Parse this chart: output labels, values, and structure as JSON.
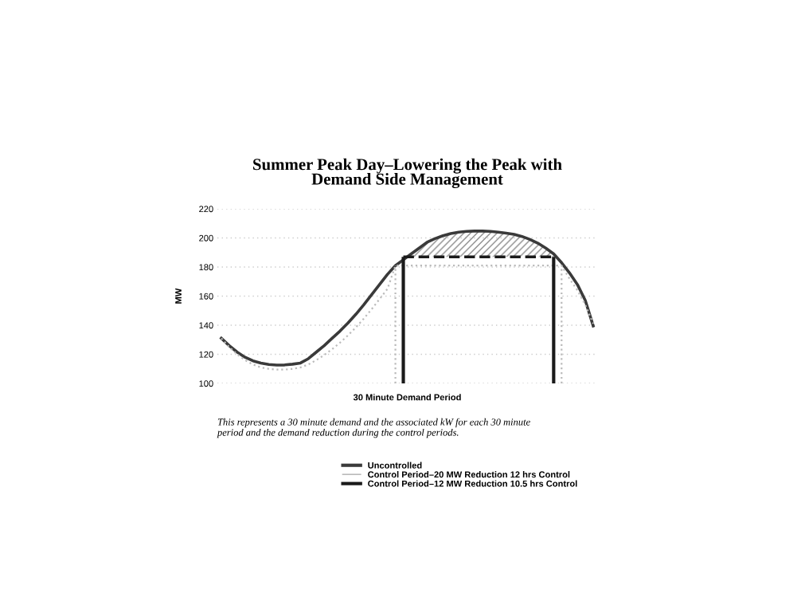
{
  "chart_data": {
    "type": "line",
    "title": "Summer Peak Day–Lowering the Peak with\nDemand Side Management",
    "xlabel": "30 Minute Demand Period",
    "ylabel": "MW",
    "annotations": [
      "This represents a 30 minute demand and the associated kW for each 30 minute\nperiod and the demand reduction during the control periods."
    ],
    "categories": [
      null,
      null,
      null,
      null,
      null,
      null,
      null,
      null,
      null,
      null,
      null,
      null,
      null,
      null,
      null,
      null,
      null,
      null,
      null,
      null,
      null,
      null,
      null,
      null,
      null,
      null,
      null,
      null,
      null,
      null,
      null,
      null,
      null,
      null,
      null,
      null,
      null,
      null,
      null,
      null,
      null,
      null,
      null,
      null,
      null,
      null,
      null,
      null
    ],
    "ylim": [
      100,
      220
    ],
    "yticks": [
      100,
      120,
      140,
      160,
      180,
      200,
      220
    ],
    "grid": "y",
    "legend": "bottom",
    "marker": "none",
    "series": [
      {
        "name": "Uncontrolled",
        "color": "#3a3a3a",
        "line_style": "solid",
        "values": [
          131,
          126,
          121.5,
          118,
          115.5,
          114,
          113,
          112.6,
          112.7,
          113.2,
          114,
          117,
          121.5,
          126,
          131,
          136,
          141.5,
          147.5,
          154,
          161,
          168,
          175,
          181,
          185,
          189,
          193,
          197,
          199.5,
          201.5,
          203,
          204,
          204.5,
          204.7,
          204.7,
          204.5,
          204,
          203.3,
          202.5,
          201,
          199,
          196.4,
          193,
          189,
          183,
          176,
          168,
          157,
          139.5
        ]
      },
      {
        "name": "Control Period–20 MW Reduction 12 hrs Control",
        "color": "#bbbbbb",
        "line_style": "dotted",
        "values": [
          131,
          125,
          120,
          116,
          113,
          111,
          110,
          109.5,
          109.5,
          110,
          111,
          113,
          116,
          119.5,
          123.5,
          128,
          133,
          138.5,
          144.5,
          151,
          158,
          165,
          181,
          181,
          181,
          181,
          181,
          181,
          181,
          181,
          181,
          181,
          181,
          181,
          181,
          181,
          181,
          181,
          181,
          181,
          181,
          181,
          181,
          181,
          172,
          164,
          154,
          141
        ]
      },
      {
        "name": "Control Period–12 MW Reduction 10.5 hrs Control",
        "color": "#1a1a1a",
        "line_style": "dashed",
        "values": [
          null,
          null,
          null,
          null,
          null,
          null,
          null,
          null,
          null,
          null,
          null,
          null,
          null,
          null,
          null,
          null,
          null,
          null,
          null,
          null,
          null,
          null,
          null,
          187,
          187,
          187,
          187,
          187,
          187,
          187,
          187,
          187,
          187,
          187,
          187,
          187,
          187,
          187,
          187,
          187,
          187,
          187,
          187,
          null,
          null,
          null,
          null,
          null
        ]
      }
    ]
  }
}
